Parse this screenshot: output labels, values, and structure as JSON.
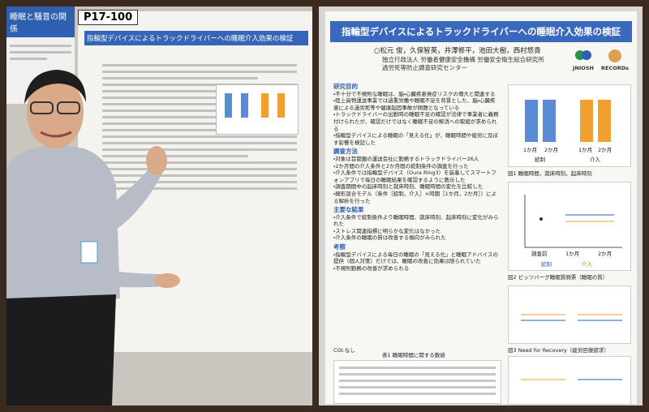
{
  "left_photo": {
    "side_poster_title": "睡眠と騒音の関係",
    "board_number": "P17-100",
    "poster_title": "指輪型デバイスによるトラックドライバーへの睡眠介入効果の検証"
  },
  "poster": {
    "title": "指輪型デバイスによるトラックドライバーへの睡眠介入効果の検証",
    "authors": "○松元 俊，久保智英，井澤修平，池田大樹，西村悠貴",
    "affiliation": [
      "独立行政法人 労働者健康安全機構 労働安全衛生総合研究所",
      "過労死等防止調査研究センター"
    ],
    "logos": [
      "JNIOSH",
      "RECORDs"
    ],
    "sections": [
      {
        "heading": "研究目的",
        "items": [
          "不十分で不規則な睡眠は、脳・心臓疾患発症リスクの増大と関連する",
          "陸上貨物運送事業では過重労働や睡眠不足を背景とした、脳・心臓疾患による過労死等や健康起因事故が問題となっている",
          "トラックドライバーの出勤時の睡眠不足の確認が法律で事業者に義務付けられたが、確認だけではなく睡眠不足の解消への取組が求められる",
          "指輪型デバイスによる睡眠の「見える化」が、睡眠時間や疲労に及ぼす影響を検証した"
        ]
      },
      {
        "heading": "調査方法",
        "items": [
          "対象は首都圏の運送会社に勤務するトラックドライバー26人",
          "2か月間の介入条件と2か月間の統制条件の調査を行った",
          "介入条件では指輪型デバイス（Oura Ring3）を装着してスマートフォンアプリで毎日の睡眠結果を確認するように教示した",
          "調査期間中の起床時刻と就床時刻、睡眠時間の変化を比較した",
          "線形混合モデル（条件［統制，介入］×時期［1か月，2か月］）による解析を行った"
        ]
      },
      {
        "heading": "主要な結果",
        "items": [
          "介入条件で統制条件より睡眠時間、就床時刻、起床時刻に変化がみられた",
          "ストレス関連指標に明らかな変化はなかった",
          "介入条件の睡眠の質は改善する傾向がみられた"
        ]
      },
      {
        "heading": "考察",
        "items": [
          "指輪型デバイスによる毎日の睡眠の「見える化」と睡眠アドバイスの提供（個人対策）だけでは、睡眠の改善に効果は限られていた",
          "不規則勤務の改善が求められる"
        ]
      }
    ],
    "coi": "COI:なし",
    "figures": [
      {
        "caption": "図1 睡眠時間，就床時刻，起床時刻",
        "x_labels": [
          "1か月",
          "2か月"
        ],
        "groups": [
          "統制",
          "介入"
        ]
      },
      {
        "caption": "図2 ピッツバーグ睡眠質問票（睡眠の質）",
        "x_labels": [
          "調査前",
          "1か月",
          "2か月"
        ],
        "legend": [
          "統制",
          "介入"
        ]
      },
      {
        "caption": "図3 Need for Recovery（疲労回復欲求）"
      }
    ],
    "table_caption": "表1 睡眠時間に関する数値"
  }
}
